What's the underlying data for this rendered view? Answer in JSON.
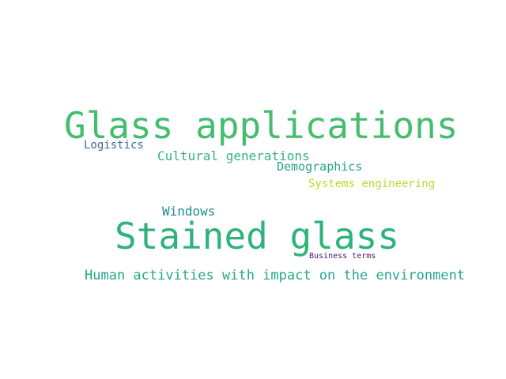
{
  "word_cloud": {
    "words": [
      {
        "text": "Glass applications",
        "color": "#44bd70"
      },
      {
        "text": "Logistics",
        "color": "#3a6f8f"
      },
      {
        "text": "Cultural generations",
        "color": "#35b179"
      },
      {
        "text": "Demographics",
        "color": "#25a384"
      },
      {
        "text": "Systems engineering",
        "color": "#b7dc2a"
      },
      {
        "text": "Windows",
        "color": "#218b8c"
      },
      {
        "text": "Stained glass",
        "color": "#2fb27c"
      },
      {
        "text": "Business terms",
        "color": "#46186f"
      },
      {
        "text": "Human activities with impact on the environment",
        "color": "#25a885"
      }
    ]
  }
}
